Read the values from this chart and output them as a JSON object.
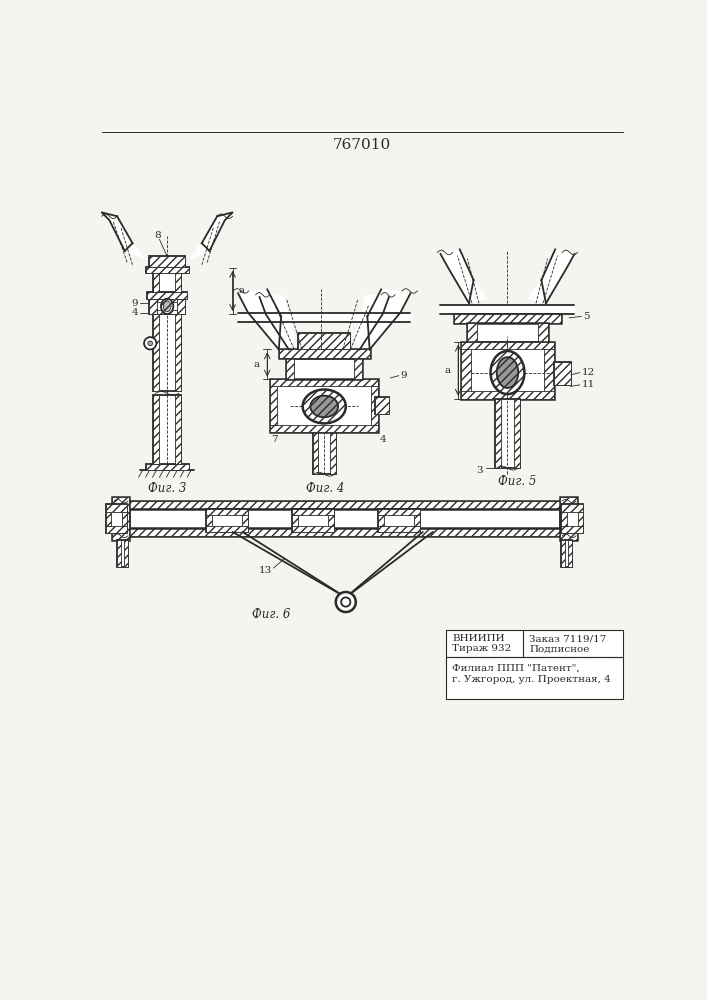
{
  "title": "767010",
  "bg_color": "#f5f5f0",
  "line_color": "#2a2a2a",
  "fig3_label": "Фиг. 3",
  "fig4_label": "Фиг. 4",
  "fig5_label": "Фиг. 5",
  "fig6_label": "Фиг. 6",
  "lw_main": 1.3,
  "lw_thin": 0.6,
  "lw_thick": 1.8,
  "fs_label": 8.5,
  "fs_small": 7.5,
  "fs_title": 11
}
